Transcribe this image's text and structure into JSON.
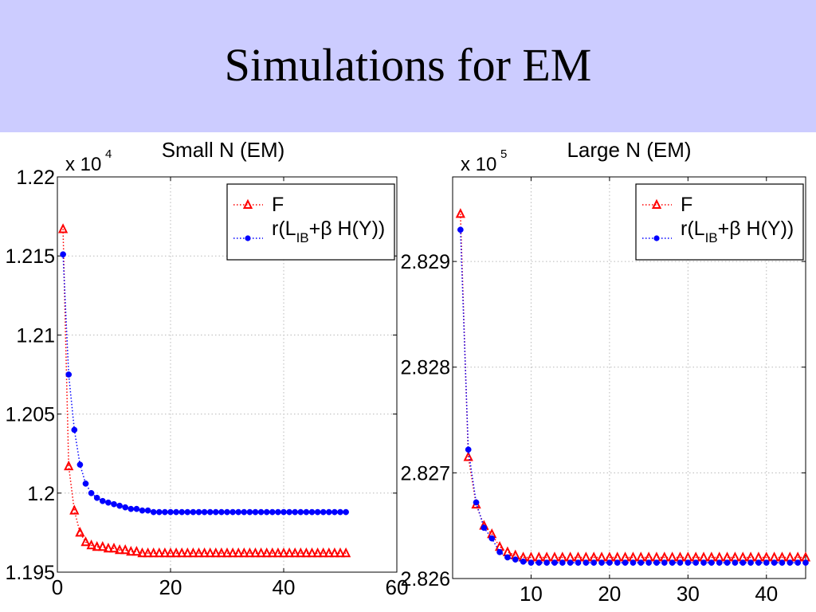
{
  "slide": {
    "title": "Simulations for EM",
    "band_color": "#ccccff"
  },
  "legend": {
    "f_label": "F",
    "r_prefix": "r(L",
    "r_sub": "IB",
    "r_suffix": "+β H(Y))"
  },
  "colors": {
    "f": "#ff0000",
    "r": "#0000ff",
    "grid": "#b8b8b8"
  },
  "chart_data": [
    {
      "type": "line",
      "title": "Small N   (EM)",
      "multiplier": "x 10",
      "multiplier_exp": "4",
      "xlabel": "",
      "ylabel": "",
      "xlim": [
        0,
        60
      ],
      "ylim": [
        1.195,
        1.22
      ],
      "x_ticks": [
        0,
        20,
        40,
        60
      ],
      "y_ticks": [
        1.195,
        1.2,
        1.205,
        1.21,
        1.215,
        1.22
      ],
      "y_tick_labels": [
        "1.195",
        "1.2",
        "1.205",
        "1.21",
        "1.215",
        "1.22"
      ],
      "grid": true,
      "legend_position": "top-right",
      "series": [
        {
          "name": "F",
          "marker": "triangle",
          "x": [
            1,
            2,
            3,
            4,
            5,
            6,
            7,
            8,
            9,
            10,
            11,
            12,
            13,
            14,
            15,
            16,
            17,
            18,
            19,
            20,
            21,
            22,
            23,
            24,
            25,
            26,
            27,
            28,
            29,
            30,
            31,
            32,
            33,
            34,
            35,
            36,
            37,
            38,
            39,
            40,
            41,
            42,
            43,
            44,
            45,
            46,
            47,
            48,
            49,
            50,
            51
          ],
          "values": [
            1.2167,
            1.2017,
            1.1989,
            1.1975,
            1.1969,
            1.1967,
            1.1966,
            1.1966,
            1.1965,
            1.1965,
            1.1964,
            1.1964,
            1.1963,
            1.1963,
            1.1962,
            1.1962,
            1.1962,
            1.1962,
            1.1962,
            1.1962,
            1.1962,
            1.1962,
            1.1962,
            1.1962,
            1.1962,
            1.1962,
            1.1962,
            1.1962,
            1.1962,
            1.1962,
            1.1962,
            1.1962,
            1.1962,
            1.1962,
            1.1962,
            1.1962,
            1.1962,
            1.1962,
            1.1962,
            1.1962,
            1.1962,
            1.1962,
            1.1962,
            1.1962,
            1.1962,
            1.1962,
            1.1962,
            1.1962,
            1.1962,
            1.1962,
            1.1962
          ]
        },
        {
          "name": "r(LIB+β H(Y))",
          "marker": "circle",
          "x": [
            1,
            2,
            3,
            4,
            5,
            6,
            7,
            8,
            9,
            10,
            11,
            12,
            13,
            14,
            15,
            16,
            17,
            18,
            19,
            20,
            21,
            22,
            23,
            24,
            25,
            26,
            27,
            28,
            29,
            30,
            31,
            32,
            33,
            34,
            35,
            36,
            37,
            38,
            39,
            40,
            41,
            42,
            43,
            44,
            45,
            46,
            47,
            48,
            49,
            50,
            51
          ],
          "values": [
            1.2151,
            1.2075,
            1.204,
            1.2018,
            1.2006,
            1.2,
            1.1997,
            1.1995,
            1.1994,
            1.1993,
            1.1992,
            1.1991,
            1.199,
            1.199,
            1.1989,
            1.1989,
            1.1988,
            1.1988,
            1.1988,
            1.1988,
            1.1988,
            1.1988,
            1.1988,
            1.1988,
            1.1988,
            1.1988,
            1.1988,
            1.1988,
            1.1988,
            1.1988,
            1.1988,
            1.1988,
            1.1988,
            1.1988,
            1.1988,
            1.1988,
            1.1988,
            1.1988,
            1.1988,
            1.1988,
            1.1988,
            1.1988,
            1.1988,
            1.1988,
            1.1988,
            1.1988,
            1.1988,
            1.1988,
            1.1988,
            1.1988,
            1.1988
          ]
        }
      ]
    },
    {
      "type": "line",
      "title": "Large N   (EM)",
      "multiplier": "x 10",
      "multiplier_exp": "5",
      "xlabel": "",
      "ylabel": "",
      "xlim": [
        0,
        45
      ],
      "ylim": [
        2.826,
        2.8298
      ],
      "x_ticks": [
        10,
        20,
        30,
        40
      ],
      "y_ticks": [
        2.826,
        2.827,
        2.828,
        2.829
      ],
      "y_tick_labels": [
        "2.826",
        "2.827",
        "2.828",
        "2.829"
      ],
      "grid": true,
      "legend_position": "top-right",
      "series": [
        {
          "name": "F",
          "marker": "triangle",
          "x": [
            1,
            2,
            3,
            4,
            5,
            6,
            7,
            8,
            9,
            10,
            11,
            12,
            13,
            14,
            15,
            16,
            17,
            18,
            19,
            20,
            21,
            22,
            23,
            24,
            25,
            26,
            27,
            28,
            29,
            30,
            31,
            32,
            33,
            34,
            35,
            36,
            37,
            38,
            39,
            40,
            41,
            42,
            43,
            44,
            45
          ],
          "values": [
            2.82945,
            2.82715,
            2.8267,
            2.8265,
            2.82642,
            2.8263,
            2.82625,
            2.82622,
            2.8262,
            2.8262,
            2.8262,
            2.8262,
            2.8262,
            2.8262,
            2.8262,
            2.8262,
            2.8262,
            2.8262,
            2.8262,
            2.8262,
            2.8262,
            2.8262,
            2.8262,
            2.8262,
            2.8262,
            2.8262,
            2.8262,
            2.8262,
            2.8262,
            2.8262,
            2.8262,
            2.8262,
            2.8262,
            2.8262,
            2.8262,
            2.8262,
            2.8262,
            2.8262,
            2.8262,
            2.8262,
            2.8262,
            2.8262,
            2.8262,
            2.8262,
            2.8262
          ]
        },
        {
          "name": "r(LIB+β H(Y))",
          "marker": "circle",
          "x": [
            1,
            2,
            3,
            4,
            5,
            6,
            7,
            8,
            9,
            10,
            11,
            12,
            13,
            14,
            15,
            16,
            17,
            18,
            19,
            20,
            21,
            22,
            23,
            24,
            25,
            26,
            27,
            28,
            29,
            30,
            31,
            32,
            33,
            34,
            35,
            36,
            37,
            38,
            39,
            40,
            41,
            42,
            43,
            44,
            45
          ],
          "values": [
            2.8293,
            2.82722,
            2.82672,
            2.82648,
            2.82638,
            2.82625,
            2.8262,
            2.82618,
            2.82616,
            2.82615,
            2.82615,
            2.82615,
            2.82615,
            2.82615,
            2.82615,
            2.82615,
            2.82615,
            2.82615,
            2.82615,
            2.82615,
            2.82615,
            2.82615,
            2.82615,
            2.82615,
            2.82615,
            2.82615,
            2.82615,
            2.82615,
            2.82615,
            2.82615,
            2.82615,
            2.82615,
            2.82615,
            2.82615,
            2.82615,
            2.82615,
            2.82615,
            2.82615,
            2.82615,
            2.82615,
            2.82615,
            2.82615,
            2.82615,
            2.82615,
            2.82615
          ]
        }
      ]
    }
  ]
}
